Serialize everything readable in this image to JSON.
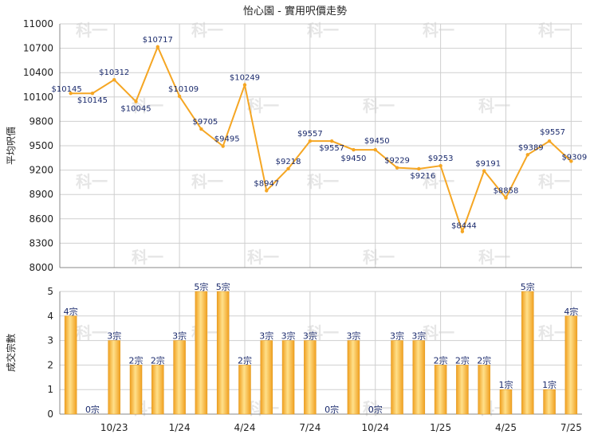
{
  "chart_data": [
    {
      "type": "line",
      "title": "怡心園 - 實用呎價走勢",
      "ylabel": "平均呎價",
      "ylim": [
        8000,
        11000
      ],
      "yticks": [
        8000,
        8300,
        8600,
        8900,
        9200,
        9500,
        9800,
        10100,
        10400,
        10700,
        11000
      ],
      "color": "#f5a623",
      "points": [
        {
          "v": 10145,
          "label": "$10145"
        },
        {
          "v": 10145,
          "label": "$10145"
        },
        {
          "v": 10312,
          "label": "$10312"
        },
        {
          "v": 10045,
          "label": "$10045"
        },
        {
          "v": 10717,
          "label": "$10717"
        },
        {
          "v": 10109,
          "label": "$10109"
        },
        {
          "v": 9705,
          "label": "$9705"
        },
        {
          "v": 9495,
          "label": "$9495"
        },
        {
          "v": 10249,
          "label": "$10249"
        },
        {
          "v": 8947,
          "label": "$8947"
        },
        {
          "v": 9218,
          "label": "$9218"
        },
        {
          "v": 9557,
          "label": "$9557"
        },
        {
          "v": 9557,
          "label": "$9557"
        },
        {
          "v": 9450,
          "label": "$9450"
        },
        {
          "v": 9450,
          "label": "$9450"
        },
        {
          "v": 9229,
          "label": "$9229"
        },
        {
          "v": 9216,
          "label": "$9216"
        },
        {
          "v": 9253,
          "label": "$9253"
        },
        {
          "v": 8444,
          "label": "$8444"
        },
        {
          "v": 9191,
          "label": "$9191"
        },
        {
          "v": 8858,
          "label": "$8858"
        },
        {
          "v": 9389,
          "label": "$9389"
        },
        {
          "v": 9557,
          "label": "$9557"
        },
        {
          "v": 9309,
          "label": "$9309"
        }
      ]
    },
    {
      "type": "bar",
      "ylabel": "成交宗數",
      "ylim": [
        0,
        5
      ],
      "yticks": [
        0,
        1,
        2,
        3,
        4,
        5
      ],
      "color": "#f5a623",
      "values": [
        4,
        0,
        3,
        2,
        2,
        3,
        5,
        5,
        2,
        3,
        3,
        3,
        0,
        3,
        0,
        3,
        3,
        2,
        2,
        2,
        1,
        5,
        1,
        4
      ],
      "value_labels": [
        "4宗",
        "0宗",
        "3宗",
        "2宗",
        "2宗",
        "3宗",
        "5宗",
        "5宗",
        "2宗",
        "3宗",
        "3宗",
        "3宗",
        "0宗",
        "3宗",
        "0宗",
        "3宗",
        "3宗",
        "2宗",
        "2宗",
        "2宗",
        "1宗",
        "5宗",
        "1宗",
        "4宗"
      ],
      "x_ticks": [
        {
          "at": 2,
          "label": "10/23"
        },
        {
          "at": 5,
          "label": "1/24"
        },
        {
          "at": 8,
          "label": "4/24"
        },
        {
          "at": 11,
          "label": "7/24"
        },
        {
          "at": 14,
          "label": "10/24"
        },
        {
          "at": 17,
          "label": "1/25"
        },
        {
          "at": 20,
          "label": "4/25"
        },
        {
          "at": 23,
          "label": "7/25"
        }
      ]
    }
  ],
  "watermark": "科一"
}
